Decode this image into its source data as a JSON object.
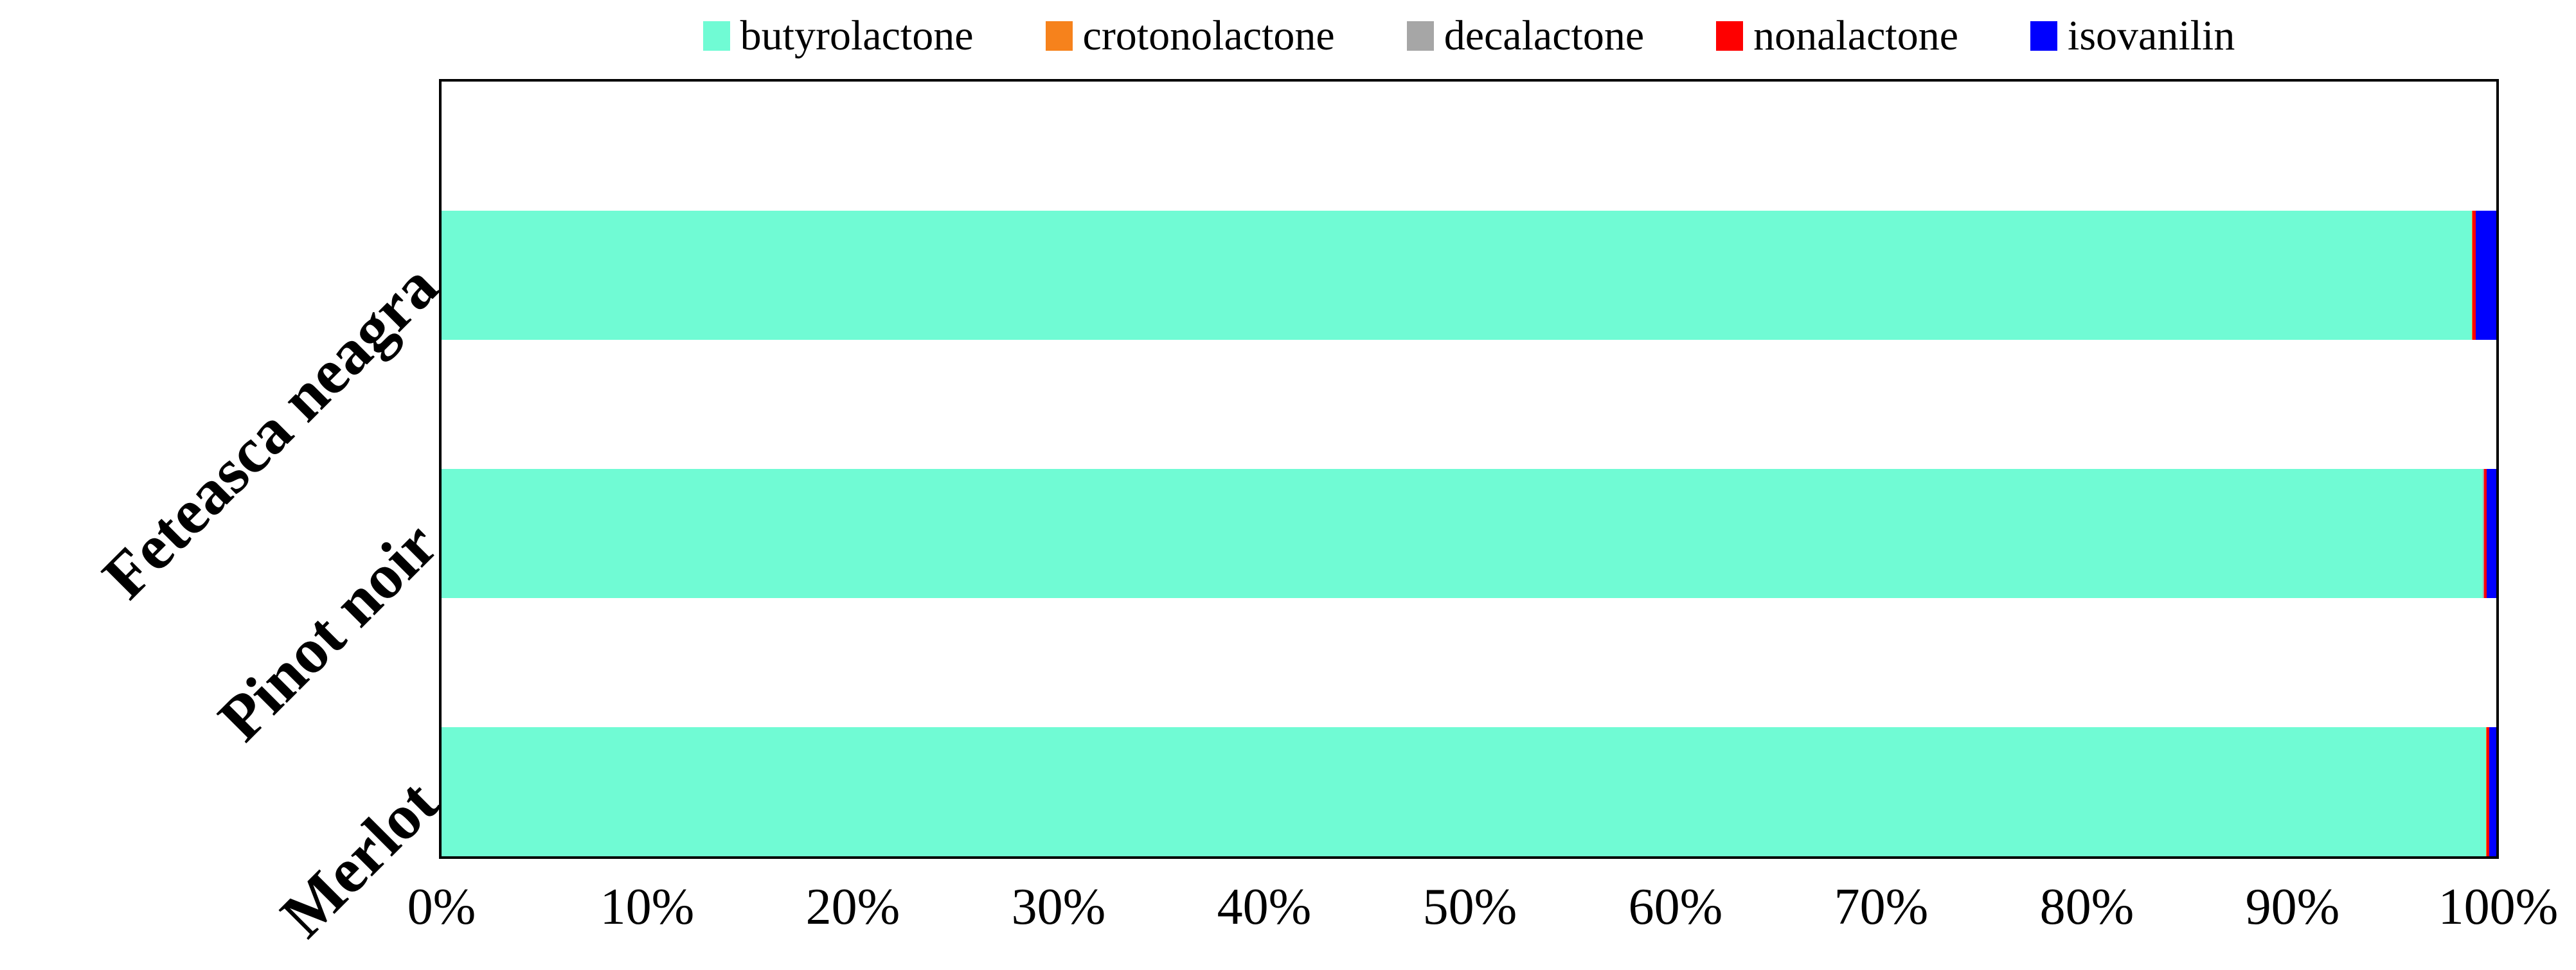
{
  "chart_data": {
    "type": "bar",
    "orientation": "horizontal",
    "stacked": true,
    "stack_mode": "100%",
    "title": "",
    "xlabel": "",
    "ylabel": "",
    "grid": false,
    "legend_position": "top",
    "plot_border_color": "#000000",
    "categories": [
      "Feteasca neagra",
      "Pinot noir",
      "Merlot"
    ],
    "series": [
      {
        "name": "butyrolactone",
        "color": "#70FBD4",
        "values": [
          98.82,
          99.35,
          99.5
        ]
      },
      {
        "name": "crotonolactone",
        "color": "#F6821C",
        "values": [
          0.01,
          0.0,
          0.02
        ]
      },
      {
        "name": "decalactone",
        "color": "#A6A6A6",
        "values": [
          0.01,
          0.06,
          0.02
        ]
      },
      {
        "name": "nonalactone",
        "color": "#FE0000",
        "values": [
          0.16,
          0.12,
          0.12
        ]
      },
      {
        "name": "isovanilin",
        "color": "#0000FE",
        "values": [
          1.0,
          0.47,
          0.34
        ]
      }
    ],
    "x_axis": {
      "range": [
        0,
        100
      ],
      "tick_labels": [
        "0%",
        "10%",
        "20%",
        "30%",
        "40%",
        "50%",
        "60%",
        "70%",
        "80%",
        "90%",
        "100%"
      ]
    }
  }
}
